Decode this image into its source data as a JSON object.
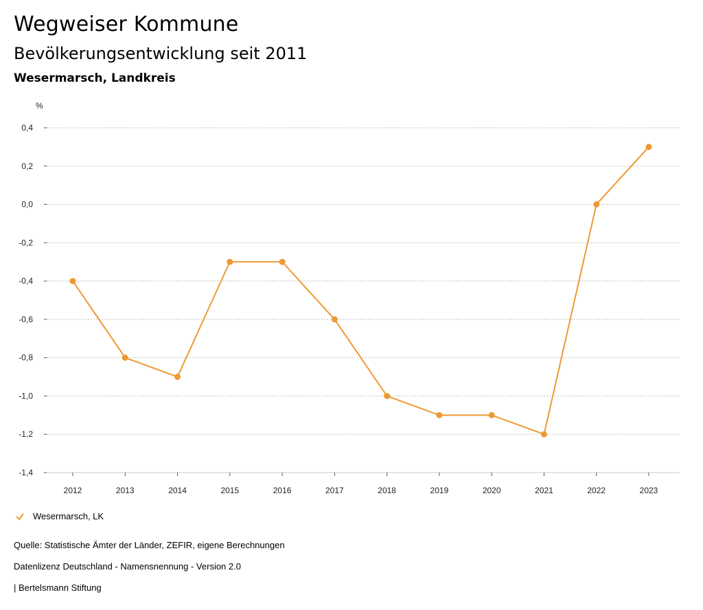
{
  "header": {
    "title": "Wegweiser Kommune",
    "subtitle": "Bevölkerungsentwicklung seit 2011",
    "region": "Wesermarsch, Landkreis"
  },
  "chart_data": {
    "type": "line",
    "ylabel": "%",
    "xlabel": "",
    "ylim": [
      -1.4,
      0.4
    ],
    "yticks": [
      "0,4",
      "0,2",
      "0,0",
      "-0,2",
      "-0,4",
      "-0,6",
      "-0,8",
      "-1,0",
      "-1,2",
      "-1,4"
    ],
    "ytick_values": [
      0.4,
      0.2,
      0.0,
      -0.2,
      -0.4,
      -0.6,
      -0.8,
      -1.0,
      -1.2,
      -1.4
    ],
    "categories": [
      "2012",
      "2013",
      "2014",
      "2015",
      "2016",
      "2017",
      "2018",
      "2019",
      "2020",
      "2021",
      "2022",
      "2023"
    ],
    "series": [
      {
        "name": "Wesermarsch, LK",
        "color": "#ee9933",
        "values": [
          -0.4,
          -0.8,
          -0.9,
          -0.3,
          -0.3,
          -0.6,
          -1.0,
          -1.1,
          -1.1,
          -1.2,
          0.0,
          0.3
        ]
      }
    ],
    "grid": true,
    "legend": "bottom-left"
  },
  "footer": {
    "source": "Quelle: Statistische Ämter der Länder, ZEFIR, eigene Berechnungen",
    "license": "Datenlizenz Deutschland - Namensnennung - Version 2.0",
    "publisher": "| Bertelsmann Stiftung"
  }
}
